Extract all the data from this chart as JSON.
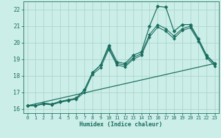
{
  "xlabel": "Humidex (Indice chaleur)",
  "background_color": "#cceee8",
  "grid_color": "#aad4cc",
  "line_color": "#1a6e60",
  "xlim": [
    -0.5,
    23.5
  ],
  "ylim": [
    15.75,
    22.5
  ],
  "xticks": [
    0,
    1,
    2,
    3,
    4,
    5,
    6,
    7,
    8,
    9,
    10,
    11,
    12,
    13,
    14,
    15,
    16,
    17,
    18,
    19,
    20,
    21,
    22,
    23
  ],
  "yticks": [
    16,
    17,
    18,
    19,
    20,
    21,
    22
  ],
  "series": [
    {
      "x": [
        0,
        1,
        2,
        3,
        4,
        5,
        6,
        7,
        8,
        9,
        10,
        11,
        12,
        13,
        14,
        15,
        16,
        17,
        18,
        19,
        20,
        21,
        22,
        23
      ],
      "y": [
        16.2,
        16.2,
        16.35,
        16.3,
        16.45,
        16.55,
        16.65,
        17.15,
        18.2,
        18.65,
        19.85,
        18.85,
        18.75,
        19.25,
        19.45,
        21.0,
        22.2,
        22.15,
        20.7,
        21.1,
        21.1,
        20.25,
        19.25,
        18.75
      ],
      "marker": "D",
      "markersize": 2.5,
      "linewidth": 0.9
    },
    {
      "x": [
        0,
        1,
        2,
        3,
        4,
        5,
        6,
        7,
        8,
        9,
        10,
        11,
        12,
        13,
        14,
        15,
        16,
        17,
        18,
        19,
        20,
        21,
        22,
        23
      ],
      "y": [
        16.2,
        16.2,
        16.35,
        16.3,
        16.45,
        16.55,
        16.65,
        17.15,
        18.2,
        18.65,
        19.7,
        18.75,
        18.65,
        19.1,
        19.35,
        20.5,
        21.1,
        20.85,
        20.4,
        20.85,
        21.0,
        20.2,
        19.2,
        18.7
      ],
      "marker": "D",
      "markersize": 2.0,
      "linewidth": 0.8
    },
    {
      "x": [
        0,
        1,
        2,
        3,
        4,
        5,
        6,
        7,
        8,
        9,
        10,
        11,
        12,
        13,
        14,
        15,
        16,
        17,
        18,
        19,
        20,
        21,
        22,
        23
      ],
      "y": [
        16.2,
        16.2,
        16.3,
        16.25,
        16.4,
        16.5,
        16.6,
        17.0,
        18.1,
        18.5,
        19.6,
        18.65,
        18.55,
        19.0,
        19.25,
        20.35,
        20.95,
        20.7,
        20.25,
        20.75,
        20.9,
        20.1,
        19.1,
        18.6
      ],
      "marker": "D",
      "markersize": 2.0,
      "linewidth": 0.8
    },
    {
      "x": [
        0,
        23
      ],
      "y": [
        16.2,
        18.75
      ],
      "marker": null,
      "markersize": 0,
      "linewidth": 0.9
    }
  ]
}
